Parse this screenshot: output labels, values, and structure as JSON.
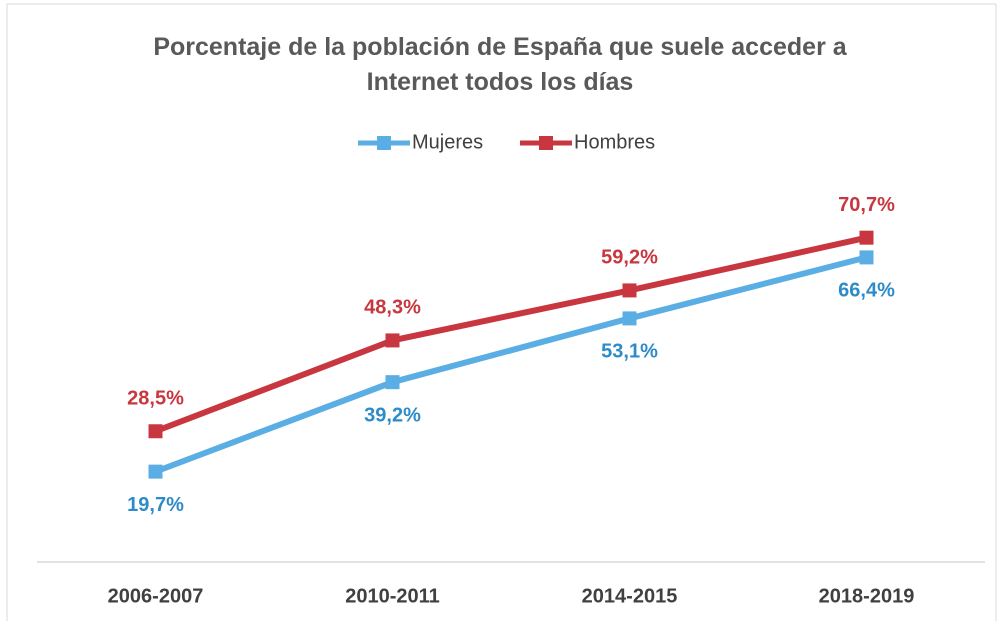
{
  "chart_data": {
    "type": "line",
    "title": "Porcentaje de la población de España que suele acceder a Internet todos los días",
    "categories": [
      "2006-2007",
      "2010-2011",
      "2014-2015",
      "2018-2019"
    ],
    "series": [
      {
        "name": "Mujeres",
        "color": "#5aaee3",
        "label_color": "#2e8bc9",
        "values": [
          19.7,
          39.2,
          53.1,
          66.4
        ],
        "value_labels": [
          "19,7%",
          "39,2%",
          "53,1%",
          "66,4%"
        ]
      },
      {
        "name": "Hombres",
        "color": "#c8373f",
        "label_color": "#c8373f",
        "values": [
          28.5,
          48.3,
          59.2,
          70.7
        ],
        "value_labels": [
          "28,5%",
          "48,3%",
          "59,2%",
          "70,7%"
        ]
      }
    ],
    "ylim": [
      0,
      80
    ],
    "legend": "top"
  }
}
